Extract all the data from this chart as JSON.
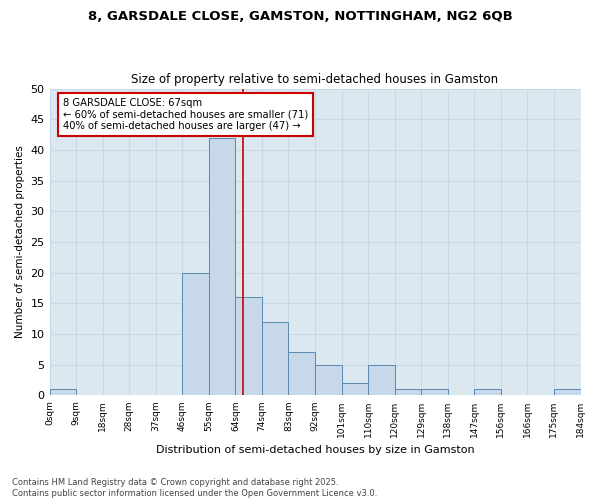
{
  "title1": "8, GARSDALE CLOSE, GAMSTON, NOTTINGHAM, NG2 6QB",
  "title2": "Size of property relative to semi-detached houses in Gamston",
  "xlabel": "Distribution of semi-detached houses by size in Gamston",
  "ylabel": "Number of semi-detached properties",
  "bins": [
    "0sqm",
    "9sqm",
    "18sqm",
    "28sqm",
    "37sqm",
    "46sqm",
    "55sqm",
    "64sqm",
    "74sqm",
    "83sqm",
    "92sqm",
    "101sqm",
    "110sqm",
    "120sqm",
    "129sqm",
    "138sqm",
    "147sqm",
    "156sqm",
    "166sqm",
    "175sqm",
    "184sqm"
  ],
  "bar_heights": [
    1,
    0,
    0,
    0,
    0,
    20,
    42,
    16,
    12,
    7,
    5,
    2,
    5,
    1,
    1,
    0,
    1,
    0,
    0,
    1
  ],
  "bar_color": "#c8d8eb",
  "bar_edge_color": "#5a8ab0",
  "annotation_title": "8 GARSDALE CLOSE: 67sqm",
  "annotation_line1": "← 60% of semi-detached houses are smaller (71)",
  "annotation_line2": "40% of semi-detached houses are larger (47) →",
  "annotation_box_color": "#ffffff",
  "annotation_edge_color": "#cc0000",
  "vline_color": "#cc0000",
  "ylim": [
    0,
    50
  ],
  "yticks": [
    0,
    5,
    10,
    15,
    20,
    25,
    30,
    35,
    40,
    45,
    50
  ],
  "grid_color": "#c8d8e8",
  "bg_color": "#dce8f0",
  "fig_color": "#ffffff",
  "footer1": "Contains HM Land Registry data © Crown copyright and database right 2025.",
  "footer2": "Contains public sector information licensed under the Open Government Licence v3.0.",
  "bin_edges": [
    0,
    9,
    18,
    28,
    37,
    46,
    55,
    64,
    74,
    83,
    92,
    101,
    110,
    120,
    129,
    138,
    147,
    156,
    166,
    175,
    184
  ],
  "property_size": 67
}
